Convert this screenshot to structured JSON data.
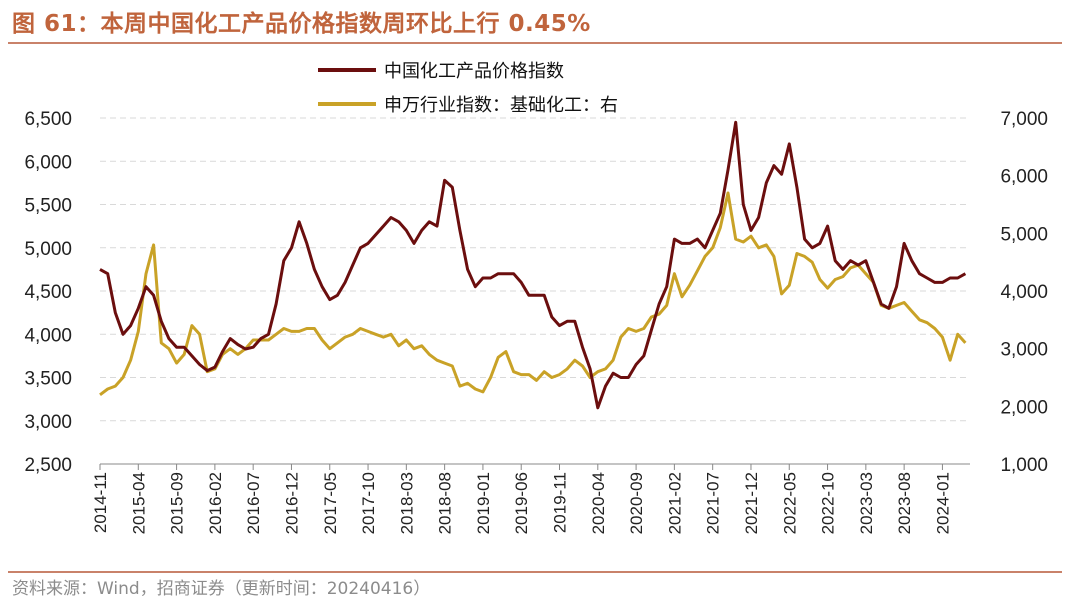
{
  "figure": {
    "title": "图 61：本周中国化工产品价格指数周环比上行 0.45%",
    "source": "资料来源：Wind，招商证券（更新时间：20240416）"
  },
  "chart_data": {
    "type": "line",
    "grid": true,
    "legend": "top-center",
    "x_tick_labels": [
      "2014-11",
      "2015-04",
      "2015-09",
      "2016-02",
      "2016-07",
      "2016-12",
      "2017-05",
      "2017-10",
      "2018-03",
      "2018-08",
      "2019-01",
      "2019-06",
      "2019-11",
      "2020-04",
      "2020-09",
      "2021-02",
      "2021-07",
      "2021-12",
      "2022-05",
      "2022-10",
      "2023-03",
      "2023-08",
      "2024-01"
    ],
    "y_left": {
      "range": [
        2500,
        6500
      ],
      "ticks": [
        "2,500",
        "3,000",
        "3,500",
        "4,000",
        "4,500",
        "5,000",
        "5,500",
        "6,000",
        "6,500"
      ]
    },
    "y_right": {
      "range": [
        1000,
        7000
      ],
      "ticks": [
        "1,000",
        "2,000",
        "3,000",
        "4,000",
        "5,000",
        "6,000",
        "7,000"
      ]
    },
    "series": [
      {
        "name": "中国化工产品价格指数",
        "axis": "left",
        "color": "#6b0e0e",
        "points": [
          [
            "2014-11",
            4750
          ],
          [
            "2014-12",
            4700
          ],
          [
            "2015-01",
            4250
          ],
          [
            "2015-02",
            4000
          ],
          [
            "2015-03",
            4100
          ],
          [
            "2015-04",
            4300
          ],
          [
            "2015-05",
            4550
          ],
          [
            "2015-06",
            4450
          ],
          [
            "2015-07",
            4150
          ],
          [
            "2015-08",
            3950
          ],
          [
            "2015-09",
            3850
          ],
          [
            "2015-10",
            3850
          ],
          [
            "2015-11",
            3750
          ],
          [
            "2015-12",
            3650
          ],
          [
            "2016-01",
            3580
          ],
          [
            "2016-02",
            3620
          ],
          [
            "2016-03",
            3800
          ],
          [
            "2016-04",
            3950
          ],
          [
            "2016-05",
            3880
          ],
          [
            "2016-06",
            3830
          ],
          [
            "2016-07",
            3850
          ],
          [
            "2016-08",
            3950
          ],
          [
            "2016-09",
            4000
          ],
          [
            "2016-10",
            4350
          ],
          [
            "2016-11",
            4850
          ],
          [
            "2016-12",
            5000
          ],
          [
            "2017-01",
            5300
          ],
          [
            "2017-02",
            5050
          ],
          [
            "2017-03",
            4750
          ],
          [
            "2017-04",
            4550
          ],
          [
            "2017-05",
            4400
          ],
          [
            "2017-06",
            4450
          ],
          [
            "2017-07",
            4600
          ],
          [
            "2017-08",
            4800
          ],
          [
            "2017-09",
            5000
          ],
          [
            "2017-10",
            5050
          ],
          [
            "2017-11",
            5150
          ],
          [
            "2017-12",
            5250
          ],
          [
            "2018-01",
            5350
          ],
          [
            "2018-02",
            5300
          ],
          [
            "2018-03",
            5200
          ],
          [
            "2018-04",
            5050
          ],
          [
            "2018-05",
            5200
          ],
          [
            "2018-06",
            5300
          ],
          [
            "2018-07",
            5250
          ],
          [
            "2018-08",
            5780
          ],
          [
            "2018-09",
            5700
          ],
          [
            "2018-10",
            5200
          ],
          [
            "2018-11",
            4750
          ],
          [
            "2018-12",
            4550
          ],
          [
            "2019-01",
            4650
          ],
          [
            "2019-02",
            4650
          ],
          [
            "2019-03",
            4700
          ],
          [
            "2019-04",
            4700
          ],
          [
            "2019-05",
            4700
          ],
          [
            "2019-06",
            4600
          ],
          [
            "2019-07",
            4450
          ],
          [
            "2019-08",
            4450
          ],
          [
            "2019-09",
            4450
          ],
          [
            "2019-10",
            4200
          ],
          [
            "2019-11",
            4100
          ],
          [
            "2019-12",
            4150
          ],
          [
            "2020-01",
            4150
          ],
          [
            "2020-02",
            3850
          ],
          [
            "2020-03",
            3600
          ],
          [
            "2020-04",
            3150
          ],
          [
            "2020-05",
            3400
          ],
          [
            "2020-06",
            3550
          ],
          [
            "2020-07",
            3500
          ],
          [
            "2020-08",
            3500
          ],
          [
            "2020-09",
            3650
          ],
          [
            "2020-10",
            3750
          ],
          [
            "2020-11",
            4050
          ],
          [
            "2020-12",
            4350
          ],
          [
            "2021-01",
            4550
          ],
          [
            "2021-02",
            5100
          ],
          [
            "2021-03",
            5050
          ],
          [
            "2021-04",
            5050
          ],
          [
            "2021-05",
            5100
          ],
          [
            "2021-06",
            5000
          ],
          [
            "2021-07",
            5200
          ],
          [
            "2021-08",
            5400
          ],
          [
            "2021-09",
            5900
          ],
          [
            "2021-10",
            6450
          ],
          [
            "2021-11",
            5500
          ],
          [
            "2021-12",
            5200
          ],
          [
            "2022-01",
            5350
          ],
          [
            "2022-02",
            5750
          ],
          [
            "2022-03",
            5950
          ],
          [
            "2022-04",
            5850
          ],
          [
            "2022-05",
            6200
          ],
          [
            "2022-06",
            5700
          ],
          [
            "2022-07",
            5100
          ],
          [
            "2022-08",
            5000
          ],
          [
            "2022-09",
            5050
          ],
          [
            "2022-10",
            5250
          ],
          [
            "2022-11",
            4850
          ],
          [
            "2022-12",
            4750
          ],
          [
            "2023-01",
            4850
          ],
          [
            "2023-02",
            4800
          ],
          [
            "2023-03",
            4850
          ],
          [
            "2023-04",
            4600
          ],
          [
            "2023-05",
            4350
          ],
          [
            "2023-06",
            4300
          ],
          [
            "2023-07",
            4550
          ],
          [
            "2023-08",
            5050
          ],
          [
            "2023-09",
            4850
          ],
          [
            "2023-10",
            4700
          ],
          [
            "2023-11",
            4650
          ],
          [
            "2023-12",
            4600
          ],
          [
            "2024-01",
            4600
          ],
          [
            "2024-02",
            4650
          ],
          [
            "2024-03",
            4650
          ],
          [
            "2024-04",
            4700
          ]
        ]
      },
      {
        "name": "申万行业指数：基础化工：右",
        "axis": "right",
        "color": "#c9a227",
        "points": [
          [
            "2014-11",
            2200
          ],
          [
            "2014-12",
            2300
          ],
          [
            "2015-01",
            2350
          ],
          [
            "2015-02",
            2500
          ],
          [
            "2015-03",
            2800
          ],
          [
            "2015-04",
            3300
          ],
          [
            "2015-05",
            4300
          ],
          [
            "2015-06",
            4800
          ],
          [
            "2015-07",
            3100
          ],
          [
            "2015-08",
            3000
          ],
          [
            "2015-09",
            2750
          ],
          [
            "2015-10",
            2900
          ],
          [
            "2015-11",
            3400
          ],
          [
            "2015-12",
            3250
          ],
          [
            "2016-01",
            2600
          ],
          [
            "2016-02",
            2650
          ],
          [
            "2016-03",
            2900
          ],
          [
            "2016-04",
            3000
          ],
          [
            "2016-05",
            2900
          ],
          [
            "2016-06",
            3000
          ],
          [
            "2016-07",
            3150
          ],
          [
            "2016-08",
            3150
          ],
          [
            "2016-09",
            3150
          ],
          [
            "2016-10",
            3250
          ],
          [
            "2016-11",
            3350
          ],
          [
            "2016-12",
            3300
          ],
          [
            "2017-01",
            3300
          ],
          [
            "2017-02",
            3350
          ],
          [
            "2017-03",
            3350
          ],
          [
            "2017-04",
            3150
          ],
          [
            "2017-05",
            3000
          ],
          [
            "2017-06",
            3100
          ],
          [
            "2017-07",
            3200
          ],
          [
            "2017-08",
            3250
          ],
          [
            "2017-09",
            3350
          ],
          [
            "2017-10",
            3300
          ],
          [
            "2017-11",
            3250
          ],
          [
            "2017-12",
            3200
          ],
          [
            "2018-01",
            3250
          ],
          [
            "2018-02",
            3050
          ],
          [
            "2018-03",
            3150
          ],
          [
            "2018-04",
            3000
          ],
          [
            "2018-05",
            3050
          ],
          [
            "2018-06",
            2900
          ],
          [
            "2018-07",
            2800
          ],
          [
            "2018-08",
            2750
          ],
          [
            "2018-09",
            2700
          ],
          [
            "2018-10",
            2350
          ],
          [
            "2018-11",
            2400
          ],
          [
            "2018-12",
            2300
          ],
          [
            "2019-01",
            2250
          ],
          [
            "2019-02",
            2500
          ],
          [
            "2019-03",
            2850
          ],
          [
            "2019-04",
            2950
          ],
          [
            "2019-05",
            2600
          ],
          [
            "2019-06",
            2550
          ],
          [
            "2019-07",
            2550
          ],
          [
            "2019-08",
            2450
          ],
          [
            "2019-09",
            2600
          ],
          [
            "2019-10",
            2500
          ],
          [
            "2019-11",
            2550
          ],
          [
            "2019-12",
            2650
          ],
          [
            "2020-01",
            2800
          ],
          [
            "2020-02",
            2700
          ],
          [
            "2020-03",
            2500
          ],
          [
            "2020-04",
            2600
          ],
          [
            "2020-05",
            2650
          ],
          [
            "2020-06",
            2800
          ],
          [
            "2020-07",
            3200
          ],
          [
            "2020-08",
            3350
          ],
          [
            "2020-09",
            3300
          ],
          [
            "2020-10",
            3350
          ],
          [
            "2020-11",
            3550
          ],
          [
            "2020-12",
            3600
          ],
          [
            "2021-01",
            3750
          ],
          [
            "2021-02",
            4300
          ],
          [
            "2021-03",
            3900
          ],
          [
            "2021-04",
            4100
          ],
          [
            "2021-05",
            4350
          ],
          [
            "2021-06",
            4600
          ],
          [
            "2021-07",
            4750
          ],
          [
            "2021-08",
            5100
          ],
          [
            "2021-09",
            5700
          ],
          [
            "2021-10",
            4900
          ],
          [
            "2021-11",
            4850
          ],
          [
            "2021-12",
            4950
          ],
          [
            "2022-01",
            4750
          ],
          [
            "2022-02",
            4800
          ],
          [
            "2022-03",
            4600
          ],
          [
            "2022-04",
            3950
          ],
          [
            "2022-05",
            4100
          ],
          [
            "2022-06",
            4650
          ],
          [
            "2022-07",
            4600
          ],
          [
            "2022-08",
            4500
          ],
          [
            "2022-09",
            4200
          ],
          [
            "2022-10",
            4050
          ],
          [
            "2022-11",
            4200
          ],
          [
            "2022-12",
            4250
          ],
          [
            "2023-01",
            4400
          ],
          [
            "2023-02",
            4450
          ],
          [
            "2023-03",
            4300
          ],
          [
            "2023-04",
            4150
          ],
          [
            "2023-05",
            3750
          ],
          [
            "2023-06",
            3700
          ],
          [
            "2023-07",
            3750
          ],
          [
            "2023-08",
            3800
          ],
          [
            "2023-09",
            3650
          ],
          [
            "2023-10",
            3500
          ],
          [
            "2023-11",
            3450
          ],
          [
            "2023-12",
            3350
          ],
          [
            "2024-01",
            3200
          ],
          [
            "2024-02",
            2800
          ],
          [
            "2024-03",
            3250
          ],
          [
            "2024-04",
            3100
          ]
        ]
      }
    ]
  }
}
